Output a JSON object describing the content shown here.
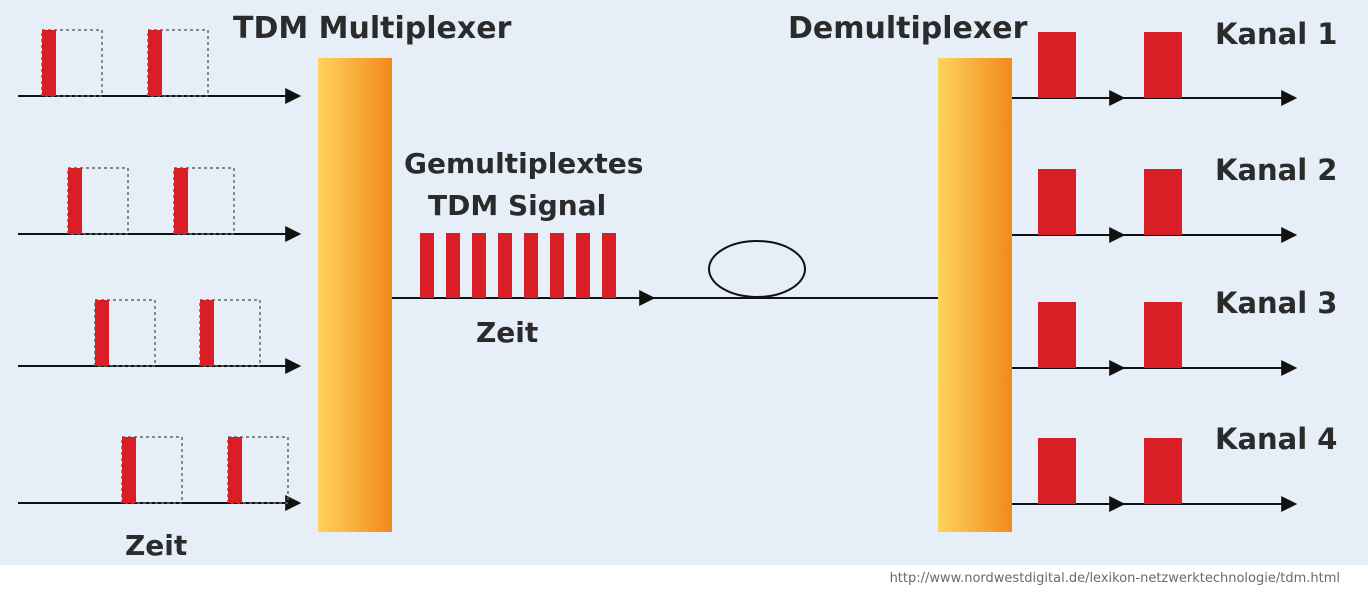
{
  "diagram": {
    "title_mux": "TDM Multiplexer",
    "title_demux": "Demultiplexer",
    "signal_label_line1": "Gemultiplextes",
    "signal_label_line2": "TDM Signal",
    "time_label_signal": "Zeit",
    "time_label_input": "Zeit",
    "channels": [
      "Kanal 1",
      "Kanal 2",
      "Kanal 3",
      "Kanal 4"
    ],
    "source_url": "http://www.nordwestdigital.de/lexikon-netzwerktechnologie/tdm.html",
    "colors": {
      "background": "#e6eef8",
      "pulse": "#d91e26",
      "box_gradient_light": "#ffd35c",
      "box_gradient_dark": "#f08a1c",
      "line": "#111111"
    },
    "multiplexed_slot_count": 8
  }
}
